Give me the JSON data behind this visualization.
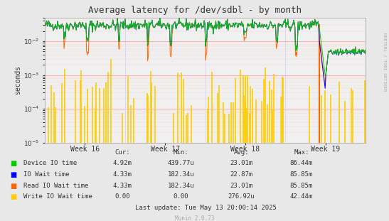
{
  "title": "Average latency for /dev/sdbl - by month",
  "ylabel": "seconds",
  "xlabel_ticks": [
    "Week 16",
    "Week 17",
    "Week 18",
    "Week 19"
  ],
  "background_color": "#e8e8e8",
  "plot_bg_color": "#f0f0f0",
  "grid_color_h": "#ff9999",
  "grid_color_v": "#9999ff",
  "title_color": "#333333",
  "legend_items": [
    {
      "label": "Device IO time",
      "color": "#00cc00"
    },
    {
      "label": "IO Wait time",
      "color": "#0000ff"
    },
    {
      "label": "Read IO Wait time",
      "color": "#ff6600"
    },
    {
      "label": "Write IO Wait time",
      "color": "#ffcc00"
    }
  ],
  "stats_headers": [
    "Cur:",
    "Min:",
    "Avg:",
    "Max:"
  ],
  "stats": [
    [
      "4.92m",
      "439.77u",
      "23.01m",
      "86.44m"
    ],
    [
      "4.33m",
      "182.34u",
      "22.87m",
      "85.85m"
    ],
    [
      "4.33m",
      "182.34u",
      "23.01m",
      "85.85m"
    ],
    [
      "0.00",
      "0.00",
      "276.92u",
      "42.44m"
    ]
  ],
  "last_update": "Last update: Tue May 13 20:00:14 2025",
  "munin_version": "Munin 2.0.73",
  "rrdtool_label": "RRDTOOL / TOBI OETIKER",
  "watermark_color": "#aaaaaa",
  "text_color": "#333333"
}
